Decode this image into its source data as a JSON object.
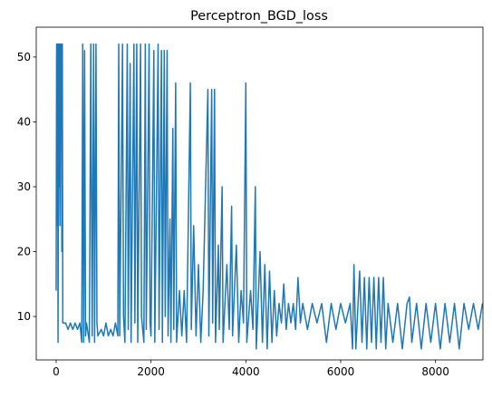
{
  "chart_data": {
    "type": "line",
    "title": "Perceptron_BGD_loss",
    "color": "#1f77b4",
    "x": [
      0,
      10,
      20,
      30,
      40,
      50,
      60,
      70,
      80,
      90,
      100,
      110,
      120,
      130,
      140,
      150,
      200,
      250,
      300,
      350,
      400,
      450,
      500,
      540,
      560,
      580,
      600,
      620,
      640,
      700,
      730,
      760,
      790,
      810,
      840,
      860,
      880,
      950,
      1000,
      1050,
      1100,
      1150,
      1200,
      1250,
      1300,
      1320,
      1340,
      1400,
      1420,
      1450,
      1500,
      1520,
      1560,
      1580,
      1640,
      1660,
      1700,
      1720,
      1780,
      1800,
      1850,
      1880,
      1900,
      1960,
      1980,
      2000,
      2060,
      2080,
      2150,
      2170,
      2220,
      2240,
      2280,
      2300,
      2340,
      2360,
      2400,
      2420,
      2460,
      2480,
      2520,
      2540,
      2600,
      2650,
      2700,
      2750,
      2830,
      2850,
      2900,
      2950,
      3000,
      3050,
      3100,
      3200,
      3220,
      3280,
      3300,
      3340,
      3360,
      3420,
      3440,
      3500,
      3520,
      3600,
      3650,
      3700,
      3720,
      3800,
      3850,
      3900,
      3950,
      4000,
      4020,
      4100,
      4150,
      4200,
      4220,
      4300,
      4350,
      4400,
      4450,
      4500,
      4550,
      4600,
      4650,
      4700,
      4750,
      4800,
      4850,
      4900,
      4950,
      5000,
      5050,
      5100,
      5150,
      5200,
      5300,
      5400,
      5500,
      5600,
      5700,
      5800,
      5900,
      6000,
      6100,
      6200,
      6250,
      6280,
      6320,
      6400,
      6450,
      6500,
      6550,
      6600,
      6650,
      6700,
      6750,
      6800,
      6850,
      6900,
      6950,
      7000,
      7100,
      7200,
      7300,
      7400,
      7450,
      7500,
      7600,
      7700,
      7800,
      7900,
      8000,
      8100,
      8200,
      8300,
      8400,
      8500,
      8600,
      8700,
      8800,
      8900,
      8990
    ],
    "values": [
      14,
      52,
      24,
      52,
      6,
      52,
      30,
      52,
      24,
      52,
      40,
      52,
      20,
      52,
      9,
      9,
      9,
      8,
      9,
      8,
      9,
      8,
      9,
      6,
      52,
      6,
      51,
      7,
      9,
      6,
      52,
      7,
      52,
      6,
      52,
      9,
      7,
      8,
      7,
      9,
      7,
      8,
      7,
      9,
      7,
      52,
      7,
      52,
      10,
      6,
      52,
      8,
      49,
      6,
      52,
      9,
      52,
      6,
      52,
      10,
      6,
      52,
      8,
      52,
      9,
      7,
      51,
      6,
      52,
      8,
      51,
      6,
      51,
      10,
      51,
      7,
      25,
      6,
      39,
      8,
      46,
      6,
      14,
      7,
      14,
      6,
      46,
      8,
      24,
      7,
      18,
      6,
      14,
      45,
      7,
      45,
      9,
      45,
      6,
      21,
      8,
      30,
      6,
      18,
      8,
      27,
      7,
      21,
      6,
      14,
      9,
      46,
      6,
      14,
      8,
      30,
      5,
      20,
      6,
      18,
      5,
      17,
      6,
      14,
      7,
      12,
      9,
      15,
      8,
      12,
      9,
      12,
      8,
      16,
      9,
      12,
      8,
      12,
      9,
      12,
      6,
      12,
      8,
      12,
      9,
      12,
      5,
      18,
      5,
      17,
      6,
      16,
      5,
      16,
      6,
      16,
      5,
      16,
      6,
      16,
      5,
      12,
      6,
      12,
      5,
      12,
      13,
      6,
      12,
      5,
      12,
      6,
      12,
      5,
      12,
      6,
      12,
      5,
      12,
      8,
      12,
      8,
      12
    ],
    "xlim": [
      -420,
      9000
    ],
    "ylim": [
      3.3,
      54.6
    ],
    "xticks": [
      0,
      2000,
      4000,
      6000,
      8000
    ],
    "yticks": [
      10,
      20,
      30,
      40,
      50
    ]
  }
}
